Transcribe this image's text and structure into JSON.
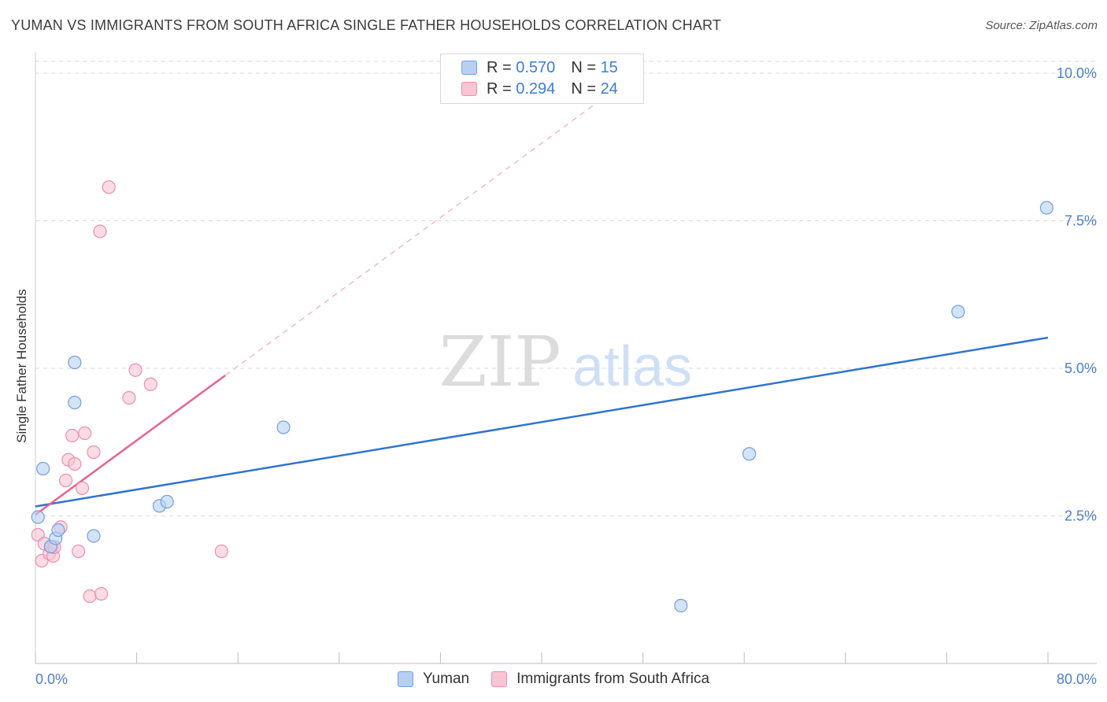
{
  "header": {
    "title": "YUMAN VS IMMIGRANTS FROM SOUTH AFRICA SINGLE FATHER HOUSEHOLDS CORRELATION CHART",
    "source": "Source: ZipAtlas.com"
  },
  "watermark": {
    "zip": "ZIP",
    "atlas": "atlas"
  },
  "legend_top": {
    "rows": [
      {
        "r_label": "R =",
        "r_value": "0.570",
        "n_label": "N =",
        "n_value": "15"
      },
      {
        "r_label": "R =",
        "r_value": "0.294",
        "n_label": "N =",
        "n_value": "24"
      }
    ]
  },
  "legend_bottom": {
    "series1": "Yuman",
    "series2": "Immigrants from South Africa"
  },
  "colors": {
    "yuman_fill": "#b7d0f2",
    "yuman_stroke": "#6fa0e0",
    "yuman_line": "#2f74cf",
    "sa_fill": "#f9c4d4",
    "sa_stroke": "#ec8fae",
    "sa_line": "#e8638f",
    "tick_label": "#4a7fcf",
    "grid": "#d9d9d9"
  },
  "chart_data": {
    "type": "scatter",
    "title": "YUMAN VS IMMIGRANTS FROM SOUTH AFRICA SINGLE FATHER HOUSEHOLDS CORRELATION CHART",
    "xlabel": "",
    "ylabel": "Single Father Households",
    "xlim": [
      0,
      80
    ],
    "ylim": [
      0,
      10.2
    ],
    "x_tick_labels": [
      "0.0%",
      "80.0%"
    ],
    "y_ticks": [
      2.5,
      5.0,
      7.5,
      10.0
    ],
    "y_tick_labels": [
      "2.5%",
      "5.0%",
      "7.5%",
      "10.0%"
    ],
    "series": [
      {
        "name": "Yuman",
        "R": 0.57,
        "N": 15,
        "points": [
          [
            0.2,
            2.48
          ],
          [
            0.6,
            3.3
          ],
          [
            1.2,
            1.98
          ],
          [
            1.6,
            2.12
          ],
          [
            1.8,
            2.26
          ],
          [
            3.1,
            5.1
          ],
          [
            3.1,
            4.42
          ],
          [
            4.6,
            2.16
          ],
          [
            9.8,
            2.67
          ],
          [
            10.4,
            2.74
          ],
          [
            19.6,
            4.0
          ],
          [
            51.0,
            0.98
          ],
          [
            56.4,
            3.55
          ],
          [
            72.9,
            5.96
          ],
          [
            79.9,
            7.72
          ]
        ],
        "trend": {
          "x": [
            0,
            80
          ],
          "y": [
            2.66,
            5.52
          ]
        }
      },
      {
        "name": "Immigrants from South Africa",
        "R": 0.294,
        "N": 24,
        "points": [
          [
            0.2,
            2.18
          ],
          [
            0.5,
            1.74
          ],
          [
            0.7,
            2.03
          ],
          [
            1.1,
            1.86
          ],
          [
            1.3,
            1.97
          ],
          [
            1.4,
            1.82
          ],
          [
            1.5,
            1.97
          ],
          [
            2.0,
            2.31
          ],
          [
            2.4,
            3.1
          ],
          [
            2.6,
            3.45
          ],
          [
            2.9,
            3.86
          ],
          [
            3.1,
            3.38
          ],
          [
            3.4,
            1.9
          ],
          [
            3.7,
            2.97
          ],
          [
            3.9,
            3.9
          ],
          [
            4.3,
            1.14
          ],
          [
            4.6,
            3.58
          ],
          [
            5.2,
            1.18
          ],
          [
            5.1,
            7.32
          ],
          [
            5.8,
            8.07
          ],
          [
            7.4,
            4.5
          ],
          [
            7.9,
            4.97
          ],
          [
            9.1,
            4.73
          ],
          [
            14.7,
            1.9
          ]
        ],
        "trend": {
          "x": [
            0,
            15.0
          ],
          "y": [
            2.52,
            4.88
          ]
        },
        "trend_extension": {
          "x": [
            15.0,
            45.0
          ],
          "y": [
            4.88,
            9.6
          ]
        }
      }
    ]
  }
}
